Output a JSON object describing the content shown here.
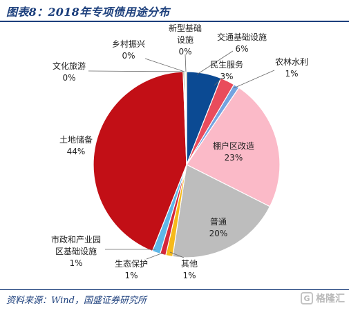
{
  "header": {
    "title": "图表8：2018年专项债用途分布"
  },
  "footer": {
    "source": "资料来源：Wind，国盛证券研究所",
    "watermark": "格隆汇",
    "watermark_logo": "G"
  },
  "chart_data": {
    "type": "pie",
    "title": "图表8：2018年专项债用途分布",
    "slices": [
      {
        "label": [
          "交通基础设施"
        ],
        "value_text": "6%",
        "value": 6.0,
        "color": "#0b4a93"
      },
      {
        "label": [
          "民生服务"
        ],
        "value_text": "3%",
        "value": 2.5,
        "color": "#e94c5c"
      },
      {
        "label": [
          "农林水利"
        ],
        "value_text": "1%",
        "value": 1.0,
        "color": "#74a3e0"
      },
      {
        "label": [
          "棚户区改造"
        ],
        "value_text": "23%",
        "value": 23.0,
        "color": "#fbbac8"
      },
      {
        "label": [
          "普通"
        ],
        "value_text": "20%",
        "value": 20.0,
        "color": "#bdbdbd"
      },
      {
        "label": [
          "其他"
        ],
        "value_text": "1%",
        "value": 1.2,
        "color": "#f6b91a"
      },
      {
        "label": [
          "生态保护"
        ],
        "value_text": "1%",
        "value": 1.0,
        "color": "#d6263a"
      },
      {
        "label": [
          "市政和产业园",
          "区基础设施"
        ],
        "value_text": "1%",
        "value": 1.4,
        "color": "#5fb7e8"
      },
      {
        "label": [
          "土地储备"
        ],
        "value_text": "44%",
        "value": 43.5,
        "color": "#c20f16"
      },
      {
        "label": [
          "文化旅游"
        ],
        "value_text": "0%",
        "value": 0.2,
        "color": "#7a7a3a"
      },
      {
        "label": [
          "乡村振兴"
        ],
        "value_text": "0%",
        "value": 0.2,
        "color": "#3d7a3d"
      },
      {
        "label": [
          "新型基础",
          "设施"
        ],
        "value_text": "0%",
        "value": 0.2,
        "color": "#e0c060"
      }
    ]
  }
}
